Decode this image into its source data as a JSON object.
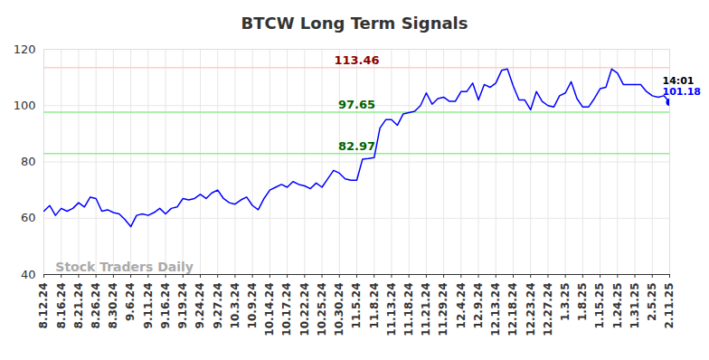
{
  "chart_data": {
    "type": "line",
    "title": "BTCW Long Term Signals",
    "watermark": "Stock Traders Daily",
    "categories": [
      "8.12.24",
      null,
      null,
      "8.16.24",
      null,
      null,
      "8.21.24",
      null,
      null,
      "8.26.24",
      null,
      null,
      "8.30.24",
      null,
      null,
      "9.6.24",
      null,
      null,
      "9.11.24",
      null,
      null,
      "9.16.24",
      null,
      null,
      "9.19.24",
      null,
      null,
      "9.24.24",
      null,
      null,
      "9.27.24",
      null,
      null,
      "10.3.24",
      null,
      null,
      "10.9.24",
      null,
      null,
      "10.14.24",
      null,
      null,
      "10.17.24",
      null,
      null,
      "10.22.24",
      null,
      null,
      "10.25.24",
      null,
      null,
      "10.30.24",
      null,
      null,
      "11.5.24",
      null,
      null,
      "11.8.24",
      null,
      null,
      "11.13.24",
      null,
      null,
      "11.18.24",
      null,
      null,
      "11.21.24",
      null,
      null,
      "11.29.24",
      null,
      null,
      "12.4.24",
      null,
      null,
      "12.9.24",
      null,
      null,
      "12.13.24",
      null,
      null,
      "12.18.24",
      null,
      null,
      "12.23.24",
      null,
      null,
      "12.27.24",
      null,
      null,
      "1.3.25",
      null,
      null,
      "1.8.25",
      null,
      null,
      "1.15.25",
      null,
      null,
      "1.24.25",
      null,
      null,
      "1.31.25",
      null,
      null,
      "2.5.25",
      null,
      null,
      "2.11.25"
    ],
    "values": [
      62.5,
      64.5,
      61,
      63.5,
      62.5,
      63.5,
      65.5,
      64,
      67.5,
      67,
      62.5,
      63,
      62,
      61.5,
      59.5,
      57,
      61,
      61.5,
      61,
      62,
      63.5,
      61.5,
      63.5,
      64,
      67,
      66.5,
      67,
      68.5,
      67,
      69,
      70,
      67,
      65.5,
      65,
      66.5,
      67.5,
      64.5,
      63,
      67,
      70,
      71,
      72,
      71,
      73,
      72,
      71.5,
      70.5,
      72.5,
      71,
      74,
      77,
      76,
      74,
      73.5,
      73.5,
      81,
      81.2,
      81.5,
      92,
      95,
      95,
      93,
      97,
      97.5,
      98,
      100,
      104.5,
      100.5,
      102.5,
      103,
      101.5,
      101.5,
      105,
      105,
      108,
      102,
      107.5,
      106.5,
      108,
      112.5,
      113,
      107,
      102,
      102,
      98.5,
      105,
      101.5,
      100,
      99.5,
      103.5,
      104.5,
      108.5,
      102.5,
      99.5,
      99.5,
      102.5,
      106,
      106.5,
      113,
      111.5,
      107.5,
      107.5,
      107.5,
      107.5,
      105,
      103.5,
      103,
      103.5,
      101.18
    ],
    "color": "#0000ff",
    "reference_lines": [
      {
        "value": 113.46,
        "label": "113.46",
        "color": "#ffcccc",
        "label_color": "#8b0000"
      },
      {
        "value": 97.65,
        "label": "97.65",
        "color": "#90ee90",
        "label_color": "#006400"
      },
      {
        "value": 82.97,
        "label": "82.97",
        "color": "#90ee90",
        "label_color": "#006400"
      }
    ],
    "annotations": [
      {
        "text": "14:01",
        "color": "#000000"
      },
      {
        "text": "101.18",
        "color": "#0000ff"
      }
    ],
    "ylim": [
      40,
      120
    ],
    "yticks": [
      40,
      60,
      80,
      100,
      120
    ],
    "grid": true
  }
}
